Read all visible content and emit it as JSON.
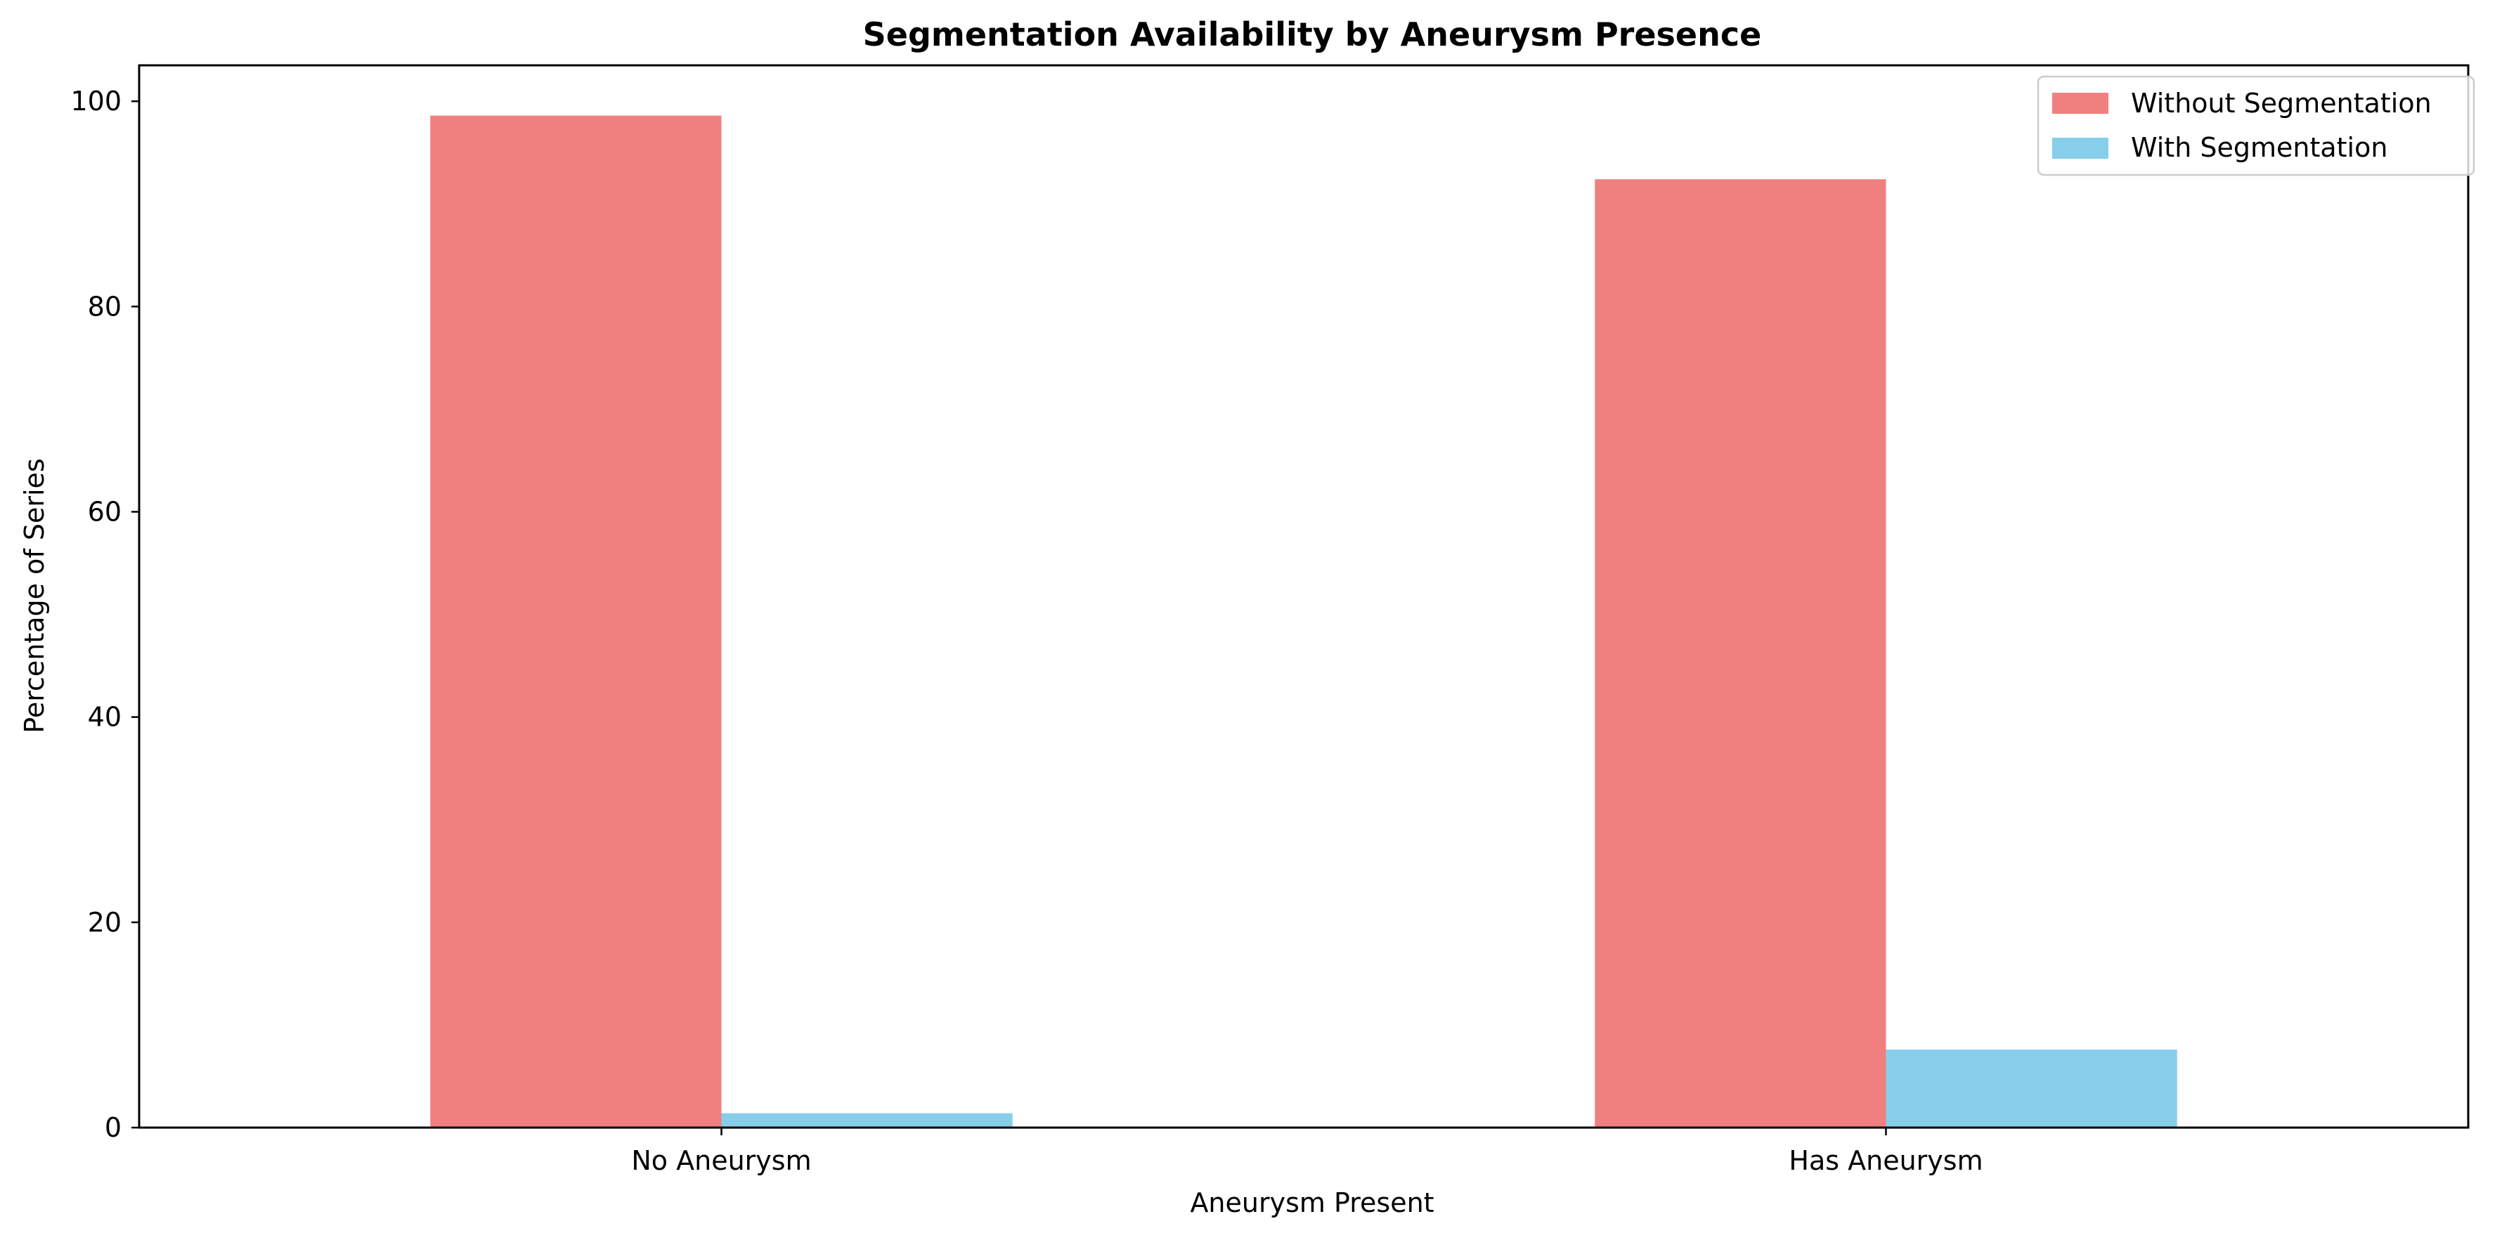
{
  "chart_data": {
    "type": "bar",
    "title": "Segmentation Availability by Aneurysm Present",
    "title_display": "Segmentation Availability by Aneurysm Presence",
    "xlabel": "Aneurysm Present",
    "ylabel": "Percentage of Series",
    "categories": [
      "No Aneurysm",
      "Has Aneurysm"
    ],
    "series": [
      {
        "name": "Without Segmentation",
        "values": [
          98.6,
          92.4
        ],
        "color": "#f08080"
      },
      {
        "name": "With Segmentation",
        "values": [
          1.4,
          7.6
        ],
        "color": "#87ceeb"
      }
    ],
    "ylim": [
      0,
      103.5
    ],
    "yticks": [
      0,
      20,
      40,
      60,
      80,
      100
    ],
    "grid": false,
    "legend_position": "top-right"
  }
}
